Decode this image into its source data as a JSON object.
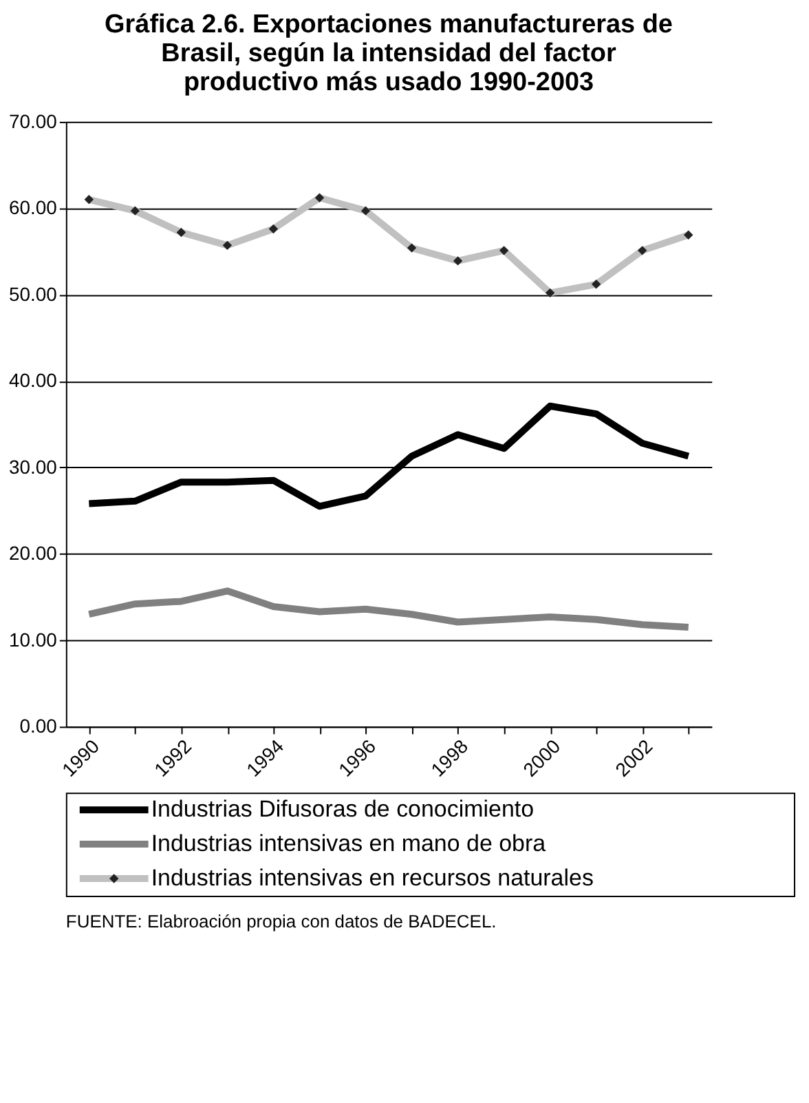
{
  "chart_data": {
    "type": "line",
    "title": "Gráfica 2.6. Exportaciones manufactureras de Brasil, según la intensidad del factor productivo más usado 1990-2003",
    "categories": [
      "1990",
      null,
      "1992",
      null,
      "1994",
      null,
      "1996",
      null,
      "1998",
      null,
      "2000",
      null,
      "2002",
      null
    ],
    "series": [
      {
        "name": "Industrias Difusoras de conocimiento",
        "color": "#000000",
        "marker": "none",
        "values": [
          25.8,
          26.1,
          28.3,
          28.3,
          28.5,
          25.5,
          26.7,
          31.3,
          33.8,
          32.2,
          37.1,
          36.2,
          32.8,
          31.3
        ]
      },
      {
        "name": "Industrias intensivas en mano de obra",
        "color": "#808080",
        "marker": "none",
        "values": [
          13.0,
          14.2,
          14.5,
          15.7,
          13.9,
          13.3,
          13.6,
          13.0,
          12.1,
          12.4,
          12.7,
          12.4,
          11.8,
          11.5
        ]
      },
      {
        "name": "Industrias intensivas en recursos naturales",
        "color": "#c0c0c0",
        "marker": "diamond",
        "values": [
          61.0,
          59.7,
          57.2,
          55.7,
          57.6,
          61.2,
          59.7,
          55.4,
          53.9,
          55.1,
          50.2,
          51.2,
          55.1,
          56.9
        ]
      }
    ],
    "ylim": [
      0,
      70
    ],
    "yticks": [
      {
        "value": 0,
        "label": "0.00"
      },
      {
        "value": 10,
        "label": "10.00"
      },
      {
        "value": 20,
        "label": "20.00"
      },
      {
        "value": 30,
        "label": "30.00"
      },
      {
        "value": 40,
        "label": "40.00"
      },
      {
        "value": 50,
        "label": "50.00"
      },
      {
        "value": 60,
        "label": "60.00"
      },
      {
        "value": 70,
        "label": "70.00"
      }
    ],
    "grid": "y",
    "legend": "bottom",
    "line_style": "solid",
    "annotations": [
      "FUENTE: Elabroación propia con datos de BADECEL."
    ]
  }
}
